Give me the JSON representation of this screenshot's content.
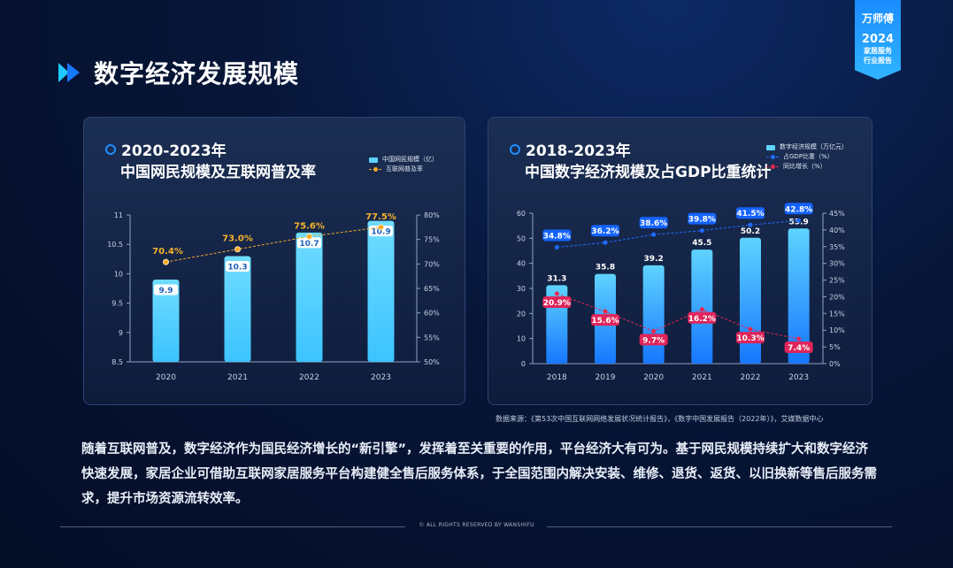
{
  "page": {
    "title": "数字经济发展规模",
    "badge": {
      "brand": "万师傅",
      "year": "2024",
      "line1": "家居服务",
      "line2": "行业报告"
    },
    "source": "数据来源：《第53次中国互联网网络发展状况统计报告》，《数字中国发展报告（2022年）》，艾媒数据中心",
    "paragraph": "随着互联网普及，数字经济作为国民经济增长的“新引擎”，发挥着至关重要的作用，平台经济大有可为。基于网民规模持续扩大和数字经济快速发展，家居企业可借助互联网家居服务平台构建健全售后服务体系，于全国范围内解决安装、维修、退货、返货、以旧换新等售后服务需求，提升市场资源流转效率。",
    "footer": "© ALL RIGHTS RESERVED BY WANSHIFU"
  },
  "colors": {
    "bar": "#5fd3ff",
    "bar_dark": "#1677ff",
    "gold": "#f5a623",
    "blue_line": "#1e6bff",
    "red_line": "#e8264f"
  },
  "chart_data": [
    {
      "type": "bar",
      "title_line1": "2020-2023年",
      "title_line2": "中国网民规模及互联网普及率",
      "categories": [
        "2020",
        "2021",
        "2022",
        "2023"
      ],
      "series": [
        {
          "name": "中国网民规模（亿）",
          "type": "bar",
          "axis": "left",
          "values": [
            9.9,
            10.3,
            10.7,
            10.9
          ]
        },
        {
          "name": "互联网普及率",
          "type": "line",
          "axis": "right",
          "values": [
            70.4,
            73.0,
            75.6,
            77.5
          ]
        }
      ],
      "bar_labels": [
        "9.9",
        "10.3",
        "10.7",
        "10.9"
      ],
      "line_labels": [
        "70.4%",
        "73.0%",
        "75.6%",
        "77.5%"
      ],
      "ylim": [
        8.5,
        11
      ],
      "yticks": [
        "8.5",
        "9",
        "9.5",
        "10",
        "10.5",
        "11"
      ],
      "y2lim": [
        50,
        80
      ],
      "y2ticks": [
        "50%",
        "55%",
        "60%",
        "65%",
        "70%",
        "75%",
        "80%"
      ],
      "legend": "top-right"
    },
    {
      "type": "bar",
      "title_line1": "2018-2023年",
      "title_line2": "中国数字经济规模及占GDP比重统计",
      "categories": [
        "2018",
        "2019",
        "2020",
        "2021",
        "2022",
        "2023"
      ],
      "series": [
        {
          "name": "数字经济规模（万亿元）",
          "type": "bar",
          "axis": "left",
          "values": [
            31.3,
            35.8,
            39.2,
            45.5,
            50.2,
            53.9
          ]
        },
        {
          "name": "占GDP比重（%）",
          "type": "line",
          "axis": "right",
          "values": [
            34.8,
            36.2,
            38.6,
            39.8,
            41.5,
            42.8
          ]
        },
        {
          "name": "同比增长（%）",
          "type": "line",
          "axis": "right",
          "values": [
            20.9,
            15.6,
            9.7,
            16.2,
            10.3,
            7.4
          ]
        }
      ],
      "bar_labels": [
        "31.3",
        "35.8",
        "39.2",
        "45.5",
        "50.2",
        "53.9"
      ],
      "gdp_labels": [
        "34.8%",
        "36.2%",
        "38.6%",
        "39.8%",
        "41.5%",
        "42.8%"
      ],
      "growth_labels": [
        "20.9%",
        "15.6%",
        "9.7%",
        "16.2%",
        "10.3%",
        "7.4%"
      ],
      "ylim": [
        0,
        60
      ],
      "yticks": [
        "0",
        "10",
        "20",
        "30",
        "40",
        "50",
        "60"
      ],
      "y2lim": [
        0,
        45
      ],
      "y2ticks": [
        "0%",
        "5%",
        "10%",
        "15%",
        "20%",
        "25%",
        "30%",
        "35%",
        "40%",
        "45%"
      ],
      "legend": "top-right"
    }
  ]
}
